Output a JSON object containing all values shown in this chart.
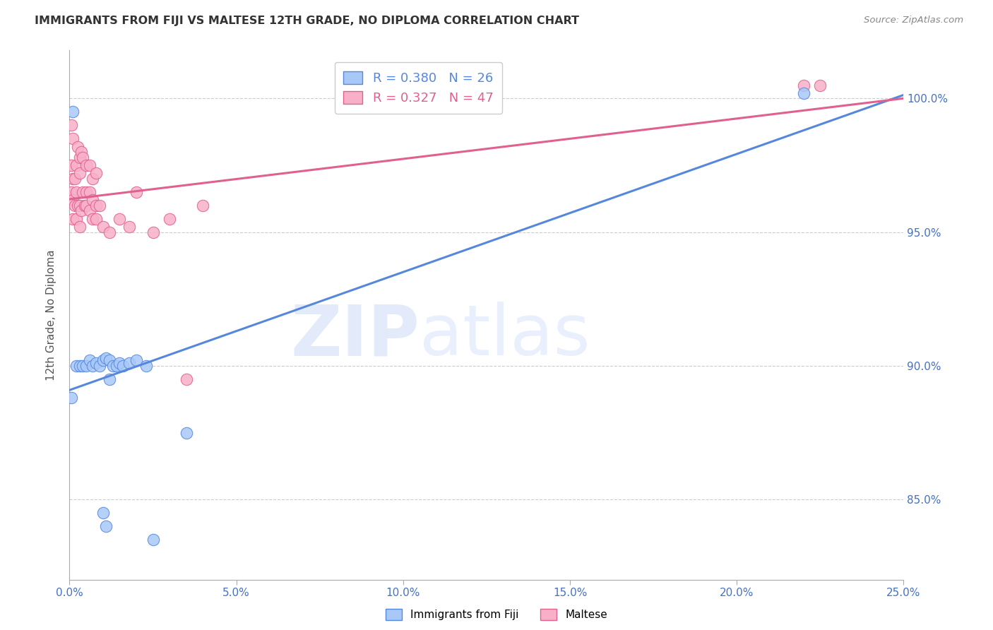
{
  "title": "IMMIGRANTS FROM FIJI VS MALTESE 12TH GRADE, NO DIPLOMA CORRELATION CHART",
  "source": "Source: ZipAtlas.com",
  "ylabel": "12th Grade, No Diploma",
  "x_tick_values": [
    0.0,
    5.0,
    10.0,
    15.0,
    20.0,
    25.0
  ],
  "y_tick_values": [
    85.0,
    90.0,
    95.0,
    100.0
  ],
  "xlim": [
    0.0,
    25.0
  ],
  "ylim": [
    82.0,
    101.8
  ],
  "fiji_color": "#a8c8f8",
  "fiji_color_dark": "#5588dd",
  "maltese_color": "#f8b0c8",
  "maltese_color_dark": "#e06090",
  "legend_fiji_r": "0.380",
  "legend_fiji_n": "26",
  "legend_maltese_r": "0.327",
  "legend_maltese_n": "47",
  "fiji_x": [
    0.05,
    0.1,
    0.2,
    0.3,
    0.4,
    0.5,
    0.6,
    0.7,
    0.8,
    0.9,
    1.0,
    1.1,
    1.2,
    1.3,
    1.4,
    1.5,
    1.6,
    1.8,
    2.0,
    2.3,
    1.0,
    1.1,
    1.2,
    2.5,
    22.0,
    3.5
  ],
  "fiji_y": [
    88.8,
    99.5,
    90.0,
    90.0,
    90.0,
    90.0,
    90.2,
    90.0,
    90.1,
    90.0,
    90.2,
    90.3,
    90.2,
    90.0,
    90.0,
    90.1,
    90.0,
    90.1,
    90.2,
    90.0,
    84.5,
    84.0,
    89.5,
    83.5,
    100.2,
    87.5
  ],
  "maltese_x": [
    0.05,
    0.05,
    0.05,
    0.1,
    0.1,
    0.1,
    0.1,
    0.15,
    0.15,
    0.2,
    0.2,
    0.2,
    0.25,
    0.3,
    0.3,
    0.3,
    0.35,
    0.4,
    0.45,
    0.5,
    0.5,
    0.6,
    0.6,
    0.7,
    0.7,
    0.8,
    0.8,
    0.9,
    1.0,
    1.2,
    1.5,
    1.8,
    2.0,
    2.5,
    3.0,
    3.5,
    4.0,
    0.25,
    0.3,
    0.35,
    0.4,
    0.5,
    0.6,
    0.7,
    0.8,
    22.0,
    22.5
  ],
  "maltese_y": [
    99.0,
    97.5,
    96.5,
    98.5,
    97.0,
    96.2,
    95.5,
    97.0,
    96.0,
    97.5,
    96.5,
    95.5,
    96.0,
    97.2,
    96.0,
    95.2,
    95.8,
    96.5,
    96.0,
    96.5,
    96.0,
    96.5,
    95.8,
    95.5,
    96.2,
    96.0,
    95.5,
    96.0,
    95.2,
    95.0,
    95.5,
    95.2,
    96.5,
    95.0,
    95.5,
    89.5,
    96.0,
    98.2,
    97.8,
    98.0,
    97.8,
    97.5,
    97.5,
    97.0,
    97.2,
    100.5,
    100.5
  ],
  "background_color": "#ffffff",
  "grid_color": "#cccccc",
  "axis_color": "#aaaaaa",
  "tick_color": "#4472c4",
  "title_color": "#333333",
  "source_color": "#888888",
  "ylabel_color": "#555555"
}
